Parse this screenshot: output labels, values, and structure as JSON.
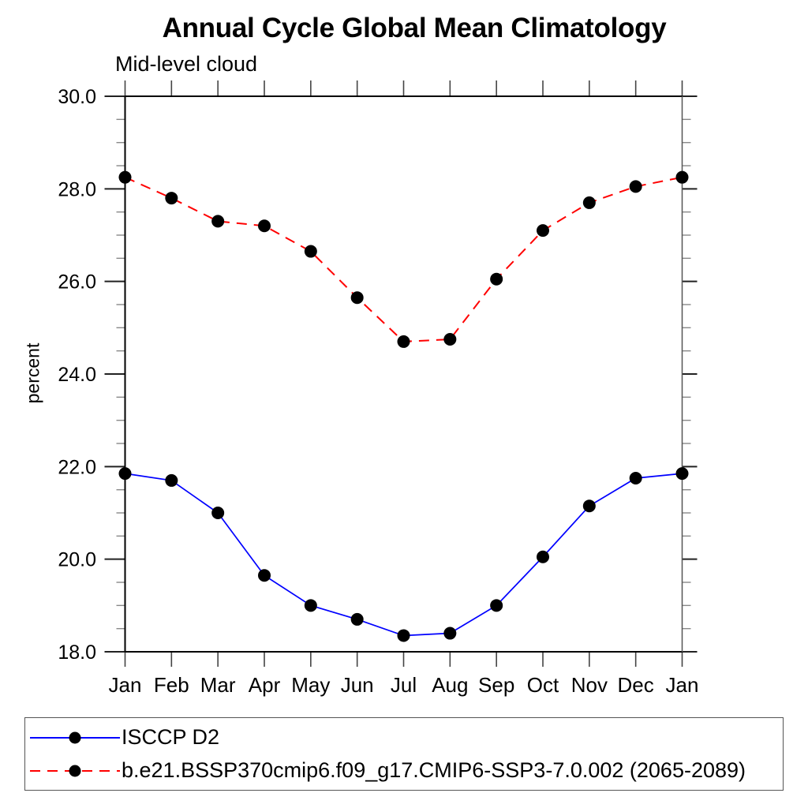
{
  "chart_data": {
    "type": "line",
    "title": "Annual Cycle Global Mean Climatology",
    "subtitle": "Mid-level cloud",
    "ylabel": "percent",
    "categories": [
      "Jan",
      "Feb",
      "Mar",
      "Apr",
      "May",
      "Jun",
      "Jul",
      "Aug",
      "Sep",
      "Oct",
      "Nov",
      "Dec",
      "Jan"
    ],
    "ylim": [
      18.0,
      30.0
    ],
    "y_major_step": 2.0,
    "y_minor_step": 0.5,
    "y_tick_labels": [
      "18.0",
      "20.0",
      "22.0",
      "24.0",
      "26.0",
      "28.0",
      "30.0"
    ],
    "grid": false,
    "legend_position": "bottom-left-box",
    "marker": {
      "shape": "filled-circle",
      "color": "#000000"
    },
    "series": [
      {
        "name": "ISCCP D2",
        "color": "#0000ff",
        "line_style": "solid",
        "values": [
          21.85,
          21.7,
          21.0,
          19.65,
          19.0,
          18.7,
          18.35,
          18.4,
          19.0,
          20.05,
          21.15,
          21.75,
          21.85
        ]
      },
      {
        "name": "b.e21.BSSP370cmip6.f09_g17.CMIP6-SSP3-7.0.002 (2065-2089)",
        "color": "#ff0000",
        "line_style": "dashed",
        "values": [
          28.25,
          27.8,
          27.3,
          27.2,
          26.65,
          25.65,
          24.7,
          24.75,
          26.05,
          27.1,
          27.7,
          28.05,
          28.25
        ]
      }
    ]
  }
}
